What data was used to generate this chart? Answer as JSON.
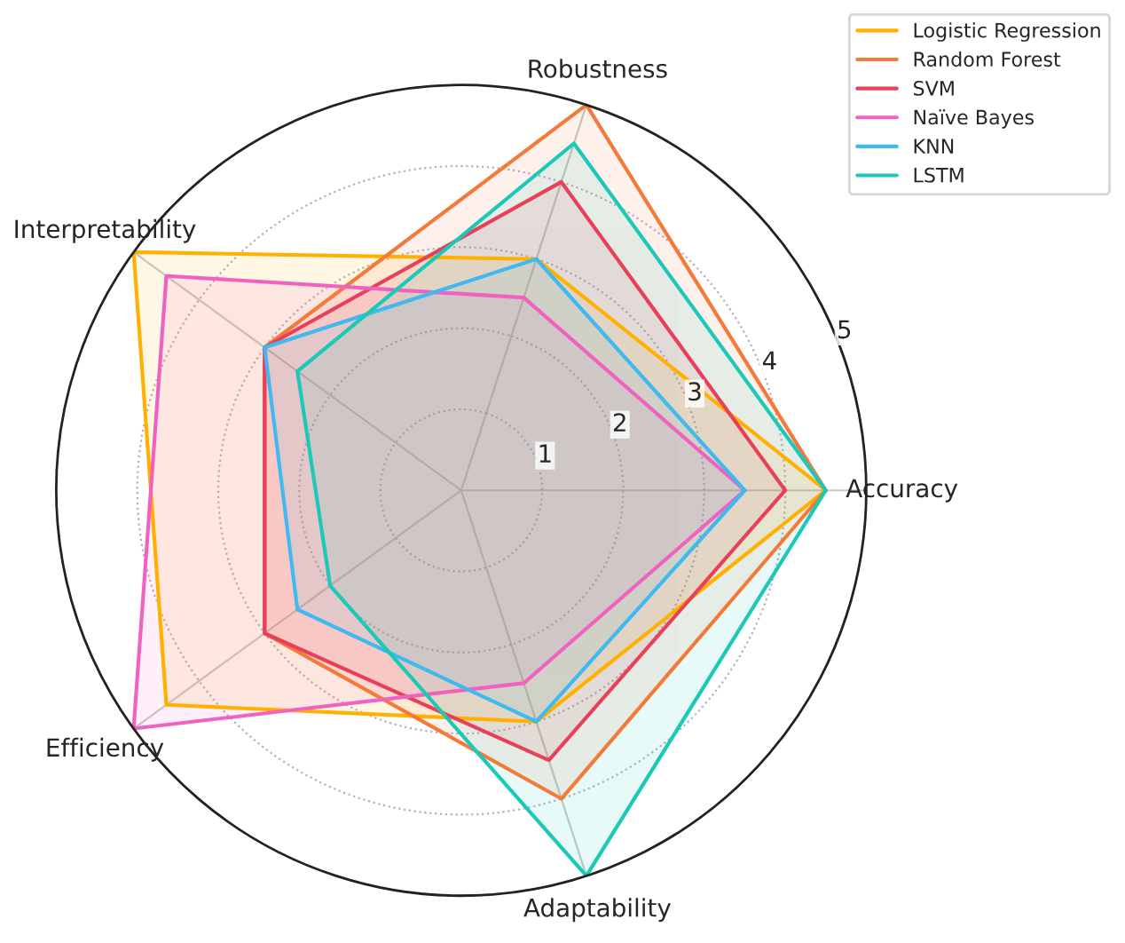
{
  "chart_data": {
    "type": "radar",
    "categories": [
      "Robustness",
      "Accuracy",
      "Adaptability",
      "Efficiency",
      "Interpretability"
    ],
    "ylim": [
      0,
      5
    ],
    "yticks": [
      1,
      2,
      3,
      4,
      5
    ],
    "grid": true,
    "legend": "top right",
    "series": [
      {
        "name": "Logistic Regression",
        "color": "#ffb000",
        "values": [
          3.0,
          4.5,
          3.0,
          4.5,
          5.0
        ]
      },
      {
        "name": "Random Forest",
        "color": "#f47a3a",
        "values": [
          5.0,
          4.5,
          4.0,
          3.0,
          3.0
        ]
      },
      {
        "name": "SVM",
        "color": "#e8405a",
        "values": [
          4.0,
          4.0,
          3.5,
          3.0,
          3.0
        ]
      },
      {
        "name": "Naïve Bayes",
        "color": "#f062c0",
        "values": [
          2.5,
          3.5,
          2.5,
          5.0,
          4.5
        ]
      },
      {
        "name": "KNN",
        "color": "#40b8f0",
        "values": [
          3.0,
          3.5,
          3.0,
          2.5,
          3.0
        ]
      },
      {
        "name": "LSTM",
        "color": "#1cc8b8",
        "values": [
          4.5,
          4.5,
          5.0,
          2.0,
          2.5
        ]
      }
    ]
  }
}
